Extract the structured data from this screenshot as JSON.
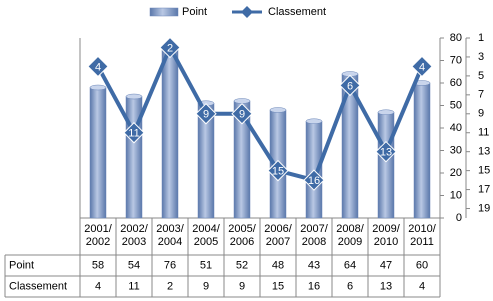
{
  "chart_data": {
    "type": "bar-line",
    "categories": [
      "2001/\n2002",
      "2002/\n2003",
      "2003/\n2004",
      "2004/\n2005",
      "2005/\n2006",
      "2006/\n2007",
      "2007/\n2008",
      "2008/\n2009",
      "2009/\n2010",
      "2010/\n2011"
    ],
    "series": [
      {
        "name": "Point",
        "type": "bar",
        "color": "#6a86b8",
        "values": [
          58,
          54,
          76,
          51,
          52,
          48,
          43,
          64,
          47,
          60
        ]
      },
      {
        "name": "Classement",
        "type": "line",
        "axis": "y2",
        "color": "#3f6ba6",
        "values": [
          4,
          11,
          2,
          9,
          9,
          15,
          16,
          6,
          13,
          4
        ]
      }
    ],
    "ylim": [
      0,
      80
    ],
    "yticks": [
      0,
      10,
      20,
      30,
      40,
      50,
      60,
      70,
      80
    ],
    "y2lim": [
      20,
      1
    ],
    "y2ticks": [
      1,
      3,
      5,
      7,
      9,
      11,
      13,
      15,
      17,
      19
    ],
    "legend": "top",
    "data_table": true
  }
}
